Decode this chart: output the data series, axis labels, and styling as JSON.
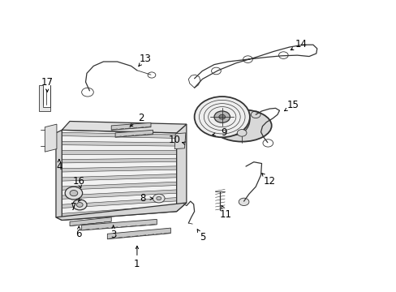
{
  "background_color": "#ffffff",
  "fig_width": 4.89,
  "fig_height": 3.6,
  "dpi": 100,
  "line_color": "#333333",
  "text_color": "#000000",
  "label_fontsize": 8.5,
  "label_arrows": {
    "1": {
      "lpos": [
        0.345,
        0.095
      ],
      "ppos": [
        0.345,
        0.175
      ]
    },
    "2": {
      "lpos": [
        0.355,
        0.595
      ],
      "ppos": [
        0.315,
        0.555
      ]
    },
    "3": {
      "lpos": [
        0.285,
        0.195
      ],
      "ppos": [
        0.285,
        0.245
      ]
    },
    "4": {
      "lpos": [
        0.148,
        0.43
      ],
      "ppos": [
        0.148,
        0.465
      ]
    },
    "5": {
      "lpos": [
        0.51,
        0.185
      ],
      "ppos": [
        0.49,
        0.23
      ]
    },
    "6": {
      "lpos": [
        0.198,
        0.198
      ],
      "ppos": [
        0.198,
        0.235
      ]
    },
    "7": {
      "lpos": [
        0.185,
        0.29
      ],
      "ppos": [
        0.2,
        0.315
      ]
    },
    "8": {
      "lpos": [
        0.36,
        0.32
      ],
      "ppos": [
        0.395,
        0.32
      ]
    },
    "9": {
      "lpos": [
        0.565,
        0.545
      ],
      "ppos": [
        0.52,
        0.535
      ]
    },
    "10": {
      "lpos": [
        0.44,
        0.52
      ],
      "ppos": [
        0.465,
        0.51
      ]
    },
    "11": {
      "lpos": [
        0.57,
        0.265
      ],
      "ppos": [
        0.555,
        0.305
      ]
    },
    "12": {
      "lpos": [
        0.68,
        0.38
      ],
      "ppos": [
        0.65,
        0.42
      ]
    },
    "13": {
      "lpos": [
        0.365,
        0.8
      ],
      "ppos": [
        0.34,
        0.76
      ]
    },
    "14": {
      "lpos": [
        0.76,
        0.85
      ],
      "ppos": [
        0.72,
        0.82
      ]
    },
    "15": {
      "lpos": [
        0.74,
        0.64
      ],
      "ppos": [
        0.705,
        0.61
      ]
    },
    "16": {
      "lpos": [
        0.198,
        0.38
      ],
      "ppos": [
        0.205,
        0.345
      ]
    },
    "17": {
      "lpos": [
        0.118,
        0.72
      ],
      "ppos": [
        0.118,
        0.675
      ]
    }
  }
}
